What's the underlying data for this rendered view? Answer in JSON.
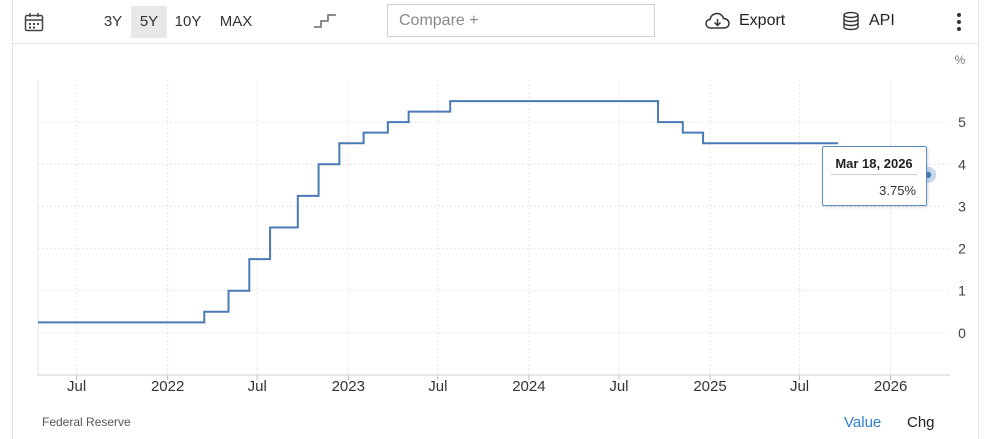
{
  "toolbar": {
    "ranges": [
      "3Y",
      "5Y",
      "10Y",
      "MAX"
    ],
    "active_range": "5Y",
    "compare_placeholder": "Compare +",
    "export_label": "Export",
    "api_label": "API"
  },
  "footer": {
    "source": "Federal Reserve",
    "value_tab": "Value",
    "chg_tab": "Chg"
  },
  "tooltip": {
    "date": "Mar 18, 2026",
    "value": "3.75%"
  },
  "colors": {
    "line": "#4a7ab7",
    "active_tab": "#2f7fd1",
    "grid": "#e6e6e6"
  },
  "chart_data": {
    "type": "line",
    "step": true,
    "unit_label": "%",
    "ylim": [
      -1,
      6
    ],
    "y_ticks": [
      0,
      1,
      2,
      3,
      4,
      5
    ],
    "xlim": [
      "2021-04-14",
      "2026-05-01"
    ],
    "x_ticks": [
      {
        "label": "Jul",
        "date": "2021-07-01"
      },
      {
        "label": "2022",
        "date": "2022-01-01"
      },
      {
        "label": "Jul",
        "date": "2022-07-01"
      },
      {
        "label": "2023",
        "date": "2023-01-01"
      },
      {
        "label": "Jul",
        "date": "2023-07-01"
      },
      {
        "label": "2024",
        "date": "2024-01-01"
      },
      {
        "label": "Jul",
        "date": "2024-07-01"
      },
      {
        "label": "2025",
        "date": "2025-01-01"
      },
      {
        "label": "Jul",
        "date": "2025-07-01"
      },
      {
        "label": "2026",
        "date": "2026-01-01"
      }
    ],
    "grid": true,
    "series": [
      {
        "points": [
          {
            "x": "2021-04-14",
            "y": 0.25
          },
          {
            "x": "2022-03-16",
            "y": 0.5
          },
          {
            "x": "2022-05-04",
            "y": 1.0
          },
          {
            "x": "2022-06-15",
            "y": 1.75
          },
          {
            "x": "2022-07-27",
            "y": 2.5
          },
          {
            "x": "2022-09-21",
            "y": 3.25
          },
          {
            "x": "2022-11-02",
            "y": 4.0
          },
          {
            "x": "2022-12-14",
            "y": 4.5
          },
          {
            "x": "2023-02-01",
            "y": 4.75
          },
          {
            "x": "2023-03-22",
            "y": 5.0
          },
          {
            "x": "2023-05-03",
            "y": 5.25
          },
          {
            "x": "2023-07-26",
            "y": 5.5
          },
          {
            "x": "2024-09-18",
            "y": 5.0
          },
          {
            "x": "2024-11-07",
            "y": 4.75
          },
          {
            "x": "2024-12-18",
            "y": 4.5
          },
          {
            "x": "2025-09-17",
            "y": 4.5
          }
        ]
      }
    ],
    "highlight": {
      "x": "2026-03-18",
      "y": 3.75
    }
  }
}
